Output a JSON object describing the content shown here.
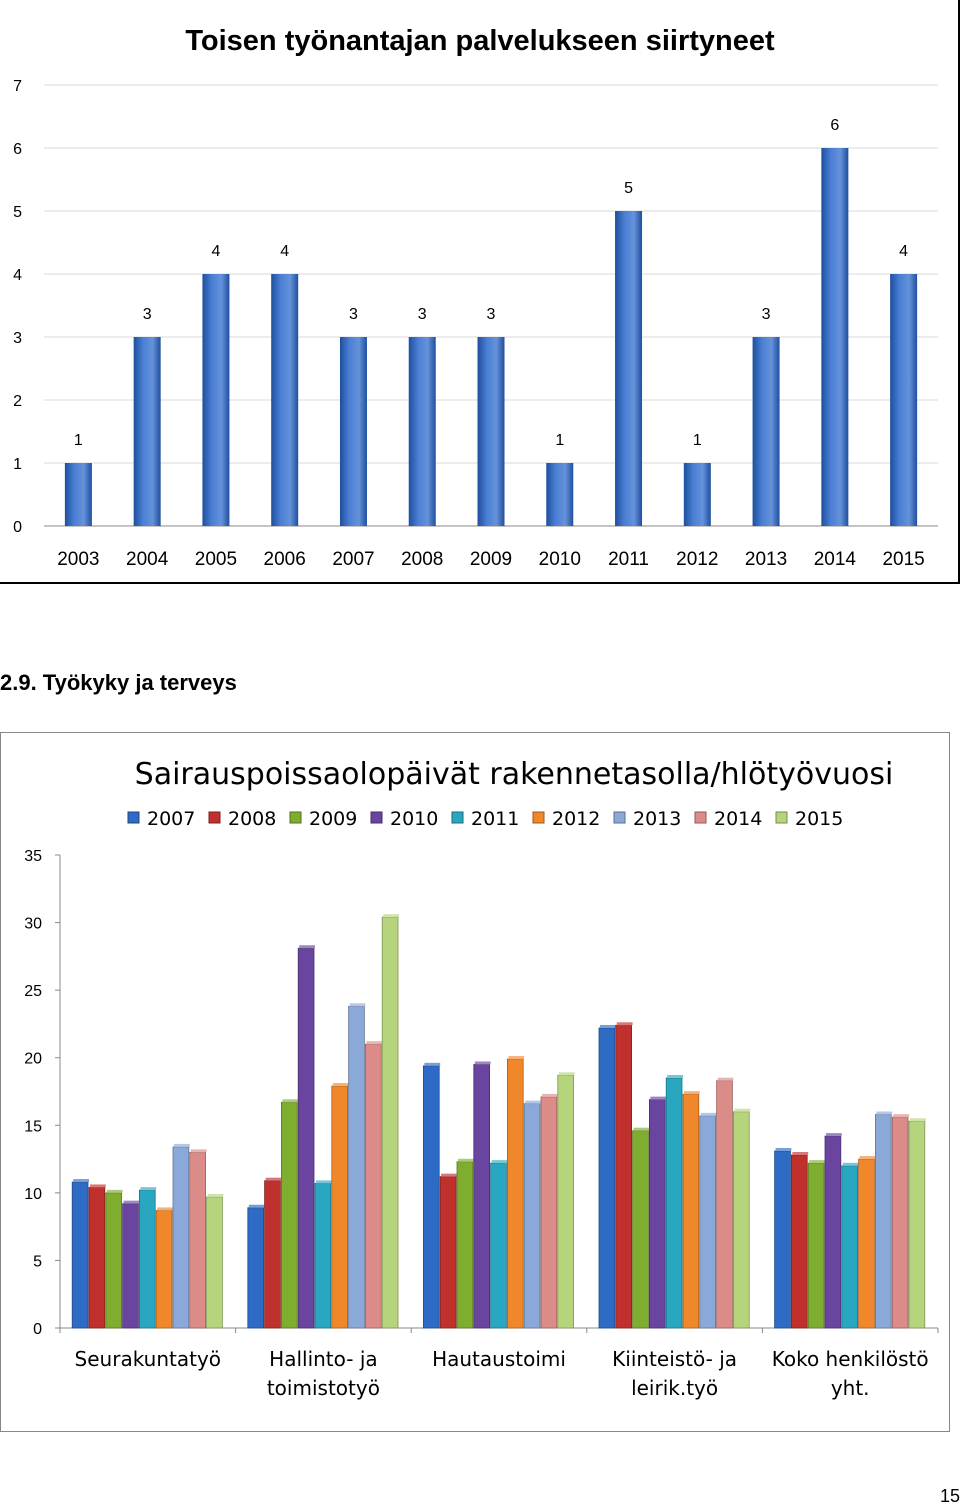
{
  "section_heading": "2.9. Työkyky ja terveys",
  "page_number": "15",
  "chart_data": [
    {
      "type": "bar",
      "title": "Toisen työnantajan palvelukseen siirtyneet",
      "categories": [
        "2003",
        "2004",
        "2005",
        "2006",
        "2007",
        "2008",
        "2009",
        "2010",
        "2011",
        "2012",
        "2013",
        "2014",
        "2015"
      ],
      "values": [
        1,
        3,
        4,
        4,
        3,
        3,
        3,
        1,
        5,
        1,
        3,
        6,
        4
      ],
      "ylim": [
        0,
        7
      ],
      "yticks": [
        0,
        1,
        2,
        3,
        4,
        5,
        6,
        7
      ],
      "data_labels": true,
      "grid": true,
      "colors": {
        "bar": "#4a7fd4",
        "bar_dark": "#1f4f9e",
        "grid": "#d9d9d9"
      }
    },
    {
      "type": "bar",
      "title": "Sairauspoissaolopäivät rakennetasolla/hlötyövuosi",
      "categories": [
        "Seurakuntatyö",
        "Hallinto- ja toimistotyö",
        "Hautaustoimi",
        "Kiinteistö- ja leirik.työ",
        "Koko henkilöstö yht."
      ],
      "category_lines": [
        [
          "Seurakuntatyö"
        ],
        [
          "Hallinto- ja",
          "toimistotyö"
        ],
        [
          "Hautaustoimi"
        ],
        [
          "Kiinteistö- ja",
          "leirik.työ"
        ],
        [
          "Koko henkilöstö",
          "yht."
        ]
      ],
      "series": [
        {
          "name": "2007",
          "color": "#2e6bc4",
          "values": [
            10.8,
            8.9,
            19.4,
            22.2,
            13.1
          ]
        },
        {
          "name": "2008",
          "color": "#c0302d",
          "values": [
            10.4,
            10.9,
            11.2,
            22.4,
            12.8
          ]
        },
        {
          "name": "2009",
          "color": "#7fad2f",
          "values": [
            10.0,
            16.7,
            12.3,
            14.6,
            12.2
          ]
        },
        {
          "name": "2010",
          "color": "#6a45a0",
          "values": [
            9.2,
            28.1,
            19.5,
            16.9,
            14.2
          ]
        },
        {
          "name": "2011",
          "color": "#2aa7c0",
          "values": [
            10.2,
            10.7,
            12.2,
            18.5,
            12.0
          ]
        },
        {
          "name": "2012",
          "color": "#f0872a",
          "values": [
            8.7,
            17.9,
            19.9,
            17.3,
            12.5
          ]
        },
        {
          "name": "2013",
          "color": "#8aa9d8",
          "values": [
            13.4,
            23.8,
            16.6,
            15.7,
            15.8
          ]
        },
        {
          "name": "2014",
          "color": "#db8c88",
          "values": [
            13.0,
            21.0,
            17.1,
            18.3,
            15.6
          ]
        },
        {
          "name": "2015",
          "color": "#b6d47c",
          "values": [
            9.7,
            30.4,
            18.7,
            16.0,
            15.3
          ]
        }
      ],
      "ylim": [
        0,
        35
      ],
      "yticks": [
        0,
        5,
        10,
        15,
        20,
        25,
        30,
        35
      ],
      "legend": "top",
      "grid": false
    }
  ]
}
